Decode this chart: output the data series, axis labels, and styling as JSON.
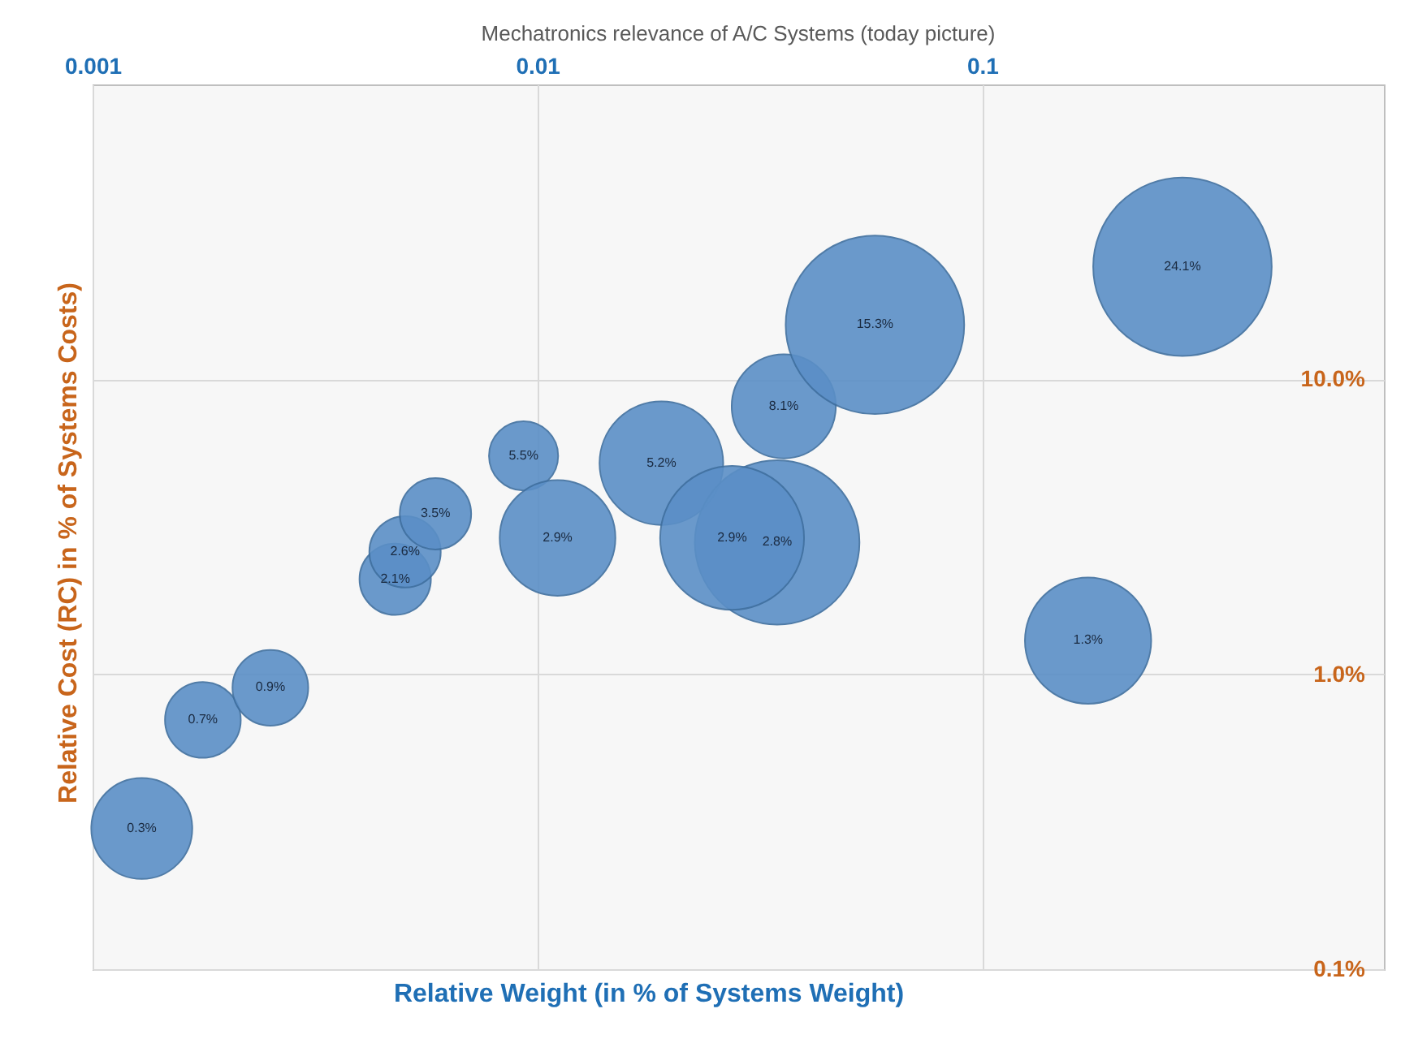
{
  "chart_data": {
    "type": "bubble",
    "title": "Mechatronics relevance of A/C  Systems (today picture)",
    "xlabel": "Relative Weight (in % of Systems Weight)",
    "ylabel": "Relative Cost (RC) in  % of Systems Costs)",
    "log": "xy",
    "grid": true,
    "xlim": [
      0.001,
      0.8
    ],
    "xticks": [
      0.001,
      0.01,
      0.1
    ],
    "ylim": [
      0.1,
      100
    ],
    "yticks": [
      {
        "value": 0.1,
        "label": "0.1%"
      },
      {
        "value": 1,
        "label": "1.0%"
      },
      {
        "value": 10,
        "label": "10.0%"
      }
    ],
    "x": [
      0.00129,
      0.00177,
      0.00251,
      0.00479,
      0.00504,
      0.0059,
      0.00931,
      0.0111,
      0.019,
      0.0346,
      0.0274,
      0.0358,
      0.0574,
      0.282,
      0.173
    ],
    "series": [
      {
        "color": "#5b8fc7",
        "values": [
          0.3,
          0.7,
          0.9,
          2.1,
          2.6,
          3.5,
          5.5,
          2.9,
          5.2,
          2.8,
          2.9,
          8.1,
          15.3,
          24.1,
          1.3
        ],
        "sizes": [
          0.32,
          0.18,
          0.18,
          0.16,
          0.16,
          0.16,
          0.15,
          0.42,
          0.48,
          0.85,
          0.65,
          0.34,
          1,
          1,
          0.5
        ],
        "value_labels": [
          "0.3%",
          "0.7%",
          "0.9%",
          "2.1%",
          "2.6%",
          "3.5%",
          "5.5%",
          "2.9%",
          "5.2%",
          "2.8%",
          "2.9%",
          "8.1%",
          "15.3%",
          "24.1%",
          "1.3%"
        ]
      }
    ]
  }
}
